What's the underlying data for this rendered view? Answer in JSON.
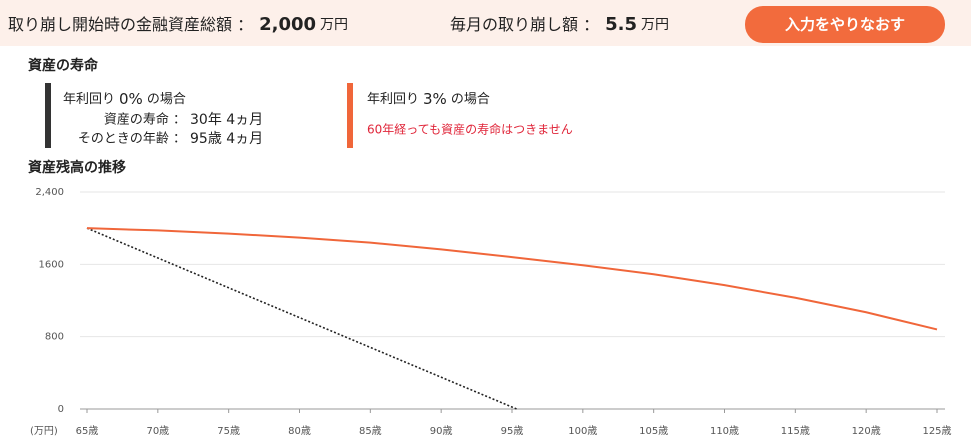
{
  "header": {
    "total_label": "取り崩し開始時の金融資産総額 ：",
    "total_value": "2,000",
    "total_unit": "万円",
    "monthly_label": "毎月の取り崩し額 ：",
    "monthly_value": "5.5",
    "monthly_unit": "万円",
    "reset_button": "入力をやりなおす"
  },
  "lifespan": {
    "title": "資産の寿命",
    "cards": [
      {
        "heading_prefix": "年利回り",
        "rate": "0%",
        "heading_suffix": "の場合",
        "lines": [
          {
            "label": "資産の寿命 ：",
            "value": "30年 4ヵ月"
          },
          {
            "label": "そのときの年齢 ：",
            "value": "95歳 4ヵ月"
          }
        ]
      },
      {
        "heading_prefix": "年利回り",
        "rate": "3%",
        "heading_suffix": "の場合",
        "message": "60年経っても資産の寿命はつきません"
      }
    ]
  },
  "chart_data": {
    "type": "line",
    "title": "資産残高の推移",
    "y_unit": "(万円)",
    "xlim": [
      65,
      125
    ],
    "xticks": [
      {
        "value": 65,
        "label": "65歳"
      },
      {
        "value": 70,
        "label": "70歳"
      },
      {
        "value": 75,
        "label": "75歳"
      },
      {
        "value": 80,
        "label": "80歳"
      },
      {
        "value": 85,
        "label": "85歳"
      },
      {
        "value": 90,
        "label": "90歳"
      },
      {
        "value": 95,
        "label": "95歳"
      },
      {
        "value": 100,
        "label": "100歳"
      },
      {
        "value": 105,
        "label": "105歳"
      },
      {
        "value": 110,
        "label": "110歳"
      },
      {
        "value": 115,
        "label": "115歳"
      },
      {
        "value": 120,
        "label": "120歳"
      },
      {
        "value": 125,
        "label": "125歳"
      }
    ],
    "ylim": [
      0,
      2400
    ],
    "yticks": [
      0,
      800,
      1600,
      {
        "value": 2400,
        "label": "2,400"
      }
    ],
    "grid": true,
    "series": [
      {
        "color": "#222222",
        "line_style": "dotted",
        "x": [
          65,
          95.33
        ],
        "values": [
          2000,
          0
        ]
      },
      {
        "color": "#f0663a",
        "line_style": "solid",
        "x": [
          65,
          70,
          75,
          80,
          85,
          90,
          95,
          100,
          105,
          110,
          115,
          120,
          125
        ],
        "values": [
          2000,
          1975,
          1940,
          1895,
          1840,
          1765,
          1680,
          1590,
          1490,
          1370,
          1230,
          1070,
          880
        ]
      }
    ]
  }
}
